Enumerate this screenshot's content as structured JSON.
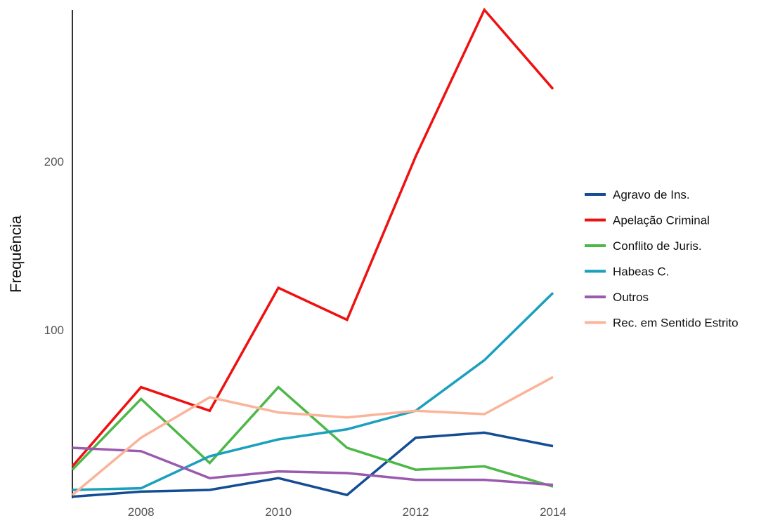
{
  "chart_data": {
    "type": "line",
    "title": "",
    "xlabel": "",
    "ylabel": "Frequência",
    "x": [
      2007,
      2008,
      2009,
      2010,
      2011,
      2012,
      2013,
      2014
    ],
    "xticks": [
      "2008",
      "2010",
      "2012",
      "2014"
    ],
    "yticks": [
      "100",
      "200"
    ],
    "xlim": [
      2007,
      2014
    ],
    "ylim": [
      0,
      290
    ],
    "grid": false,
    "legend_position": "right",
    "series": [
      {
        "name": "Agravo de Ins.",
        "color": "#144d94",
        "values": [
          1,
          4,
          5,
          12,
          2,
          36,
          39,
          31
        ]
      },
      {
        "name": "Apelação Criminal",
        "color": "#ee1111",
        "values": [
          19,
          66,
          52,
          125,
          106,
          203,
          290,
          243
        ]
      },
      {
        "name": "Conflito de Juris.",
        "color": "#4db848",
        "values": [
          17,
          59,
          21,
          66,
          30,
          17,
          19,
          7
        ]
      },
      {
        "name": "Habeas C.",
        "color": "#1aa0bd",
        "values": [
          5,
          6,
          25,
          35,
          41,
          52,
          82,
          122
        ]
      },
      {
        "name": "Outros",
        "color": "#9a5aae",
        "values": [
          30,
          28,
          12,
          16,
          15,
          11,
          11,
          8
        ]
      },
      {
        "name": "Rec. em Sentido Estrito",
        "color": "#fbb49a",
        "values": [
          2,
          36,
          60,
          51,
          48,
          52,
          50,
          72
        ]
      }
    ]
  }
}
